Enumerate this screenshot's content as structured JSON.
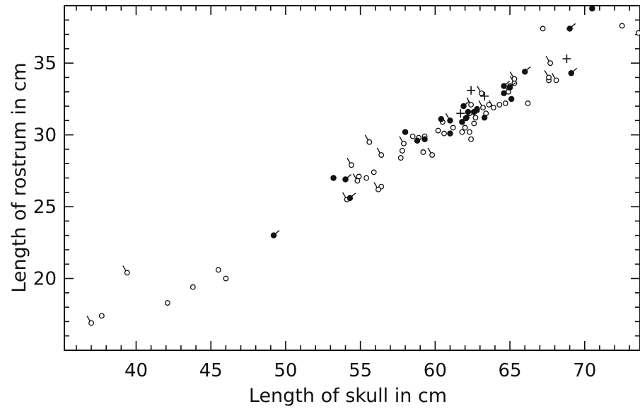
{
  "chart_data": {
    "type": "scatter",
    "xlabel": "Length of skull in cm",
    "ylabel": "Length of rostrum in cm",
    "xlim": [
      35.2,
      73.7
    ],
    "ylim": [
      15.0,
      39.0
    ],
    "x_ticks": [
      40,
      45,
      50,
      55,
      60,
      65,
      70
    ],
    "y_ticks": [
      20,
      25,
      30,
      35
    ],
    "grid": false,
    "colors": {
      "marks": "#111111",
      "axis": "#111111",
      "background": "#ffffff"
    },
    "series": [
      {
        "marker": "open-circle",
        "points": [
          [
            37.7,
            17.4
          ],
          [
            42.1,
            18.3
          ],
          [
            43.8,
            19.4
          ],
          [
            45.5,
            20.6
          ],
          [
            46.0,
            20.0
          ],
          [
            54.9,
            27.1
          ],
          [
            55.4,
            27.0
          ],
          [
            55.9,
            27.4
          ],
          [
            56.4,
            26.4
          ],
          [
            57.7,
            28.4
          ],
          [
            57.8,
            28.9
          ],
          [
            59.2,
            28.8
          ],
          [
            58.5,
            29.9
          ],
          [
            58.9,
            29.8
          ],
          [
            59.3,
            29.9
          ],
          [
            60.2,
            30.3
          ],
          [
            60.6,
            30.1
          ],
          [
            60.5,
            30.9
          ],
          [
            61.2,
            30.5
          ],
          [
            61.8,
            30.2
          ],
          [
            62.0,
            30.5
          ],
          [
            62.3,
            30.2
          ],
          [
            62.4,
            29.7
          ],
          [
            62.6,
            30.8
          ],
          [
            62.3,
            31.5
          ],
          [
            62.8,
            31.7
          ],
          [
            63.4,
            31.5
          ],
          [
            63.6,
            32.1
          ],
          [
            64.3,
            32.1
          ],
          [
            64.7,
            32.2
          ],
          [
            65.0,
            33.4
          ],
          [
            66.2,
            32.2
          ],
          [
            67.2,
            37.4
          ],
          [
            67.6,
            33.8
          ],
          [
            72.5,
            37.6
          ],
          [
            73.6,
            37.1
          ]
        ]
      },
      {
        "marker": "open-circle-tailed",
        "points": [
          [
            37.0,
            16.9
          ],
          [
            39.4,
            20.4
          ],
          [
            54.4,
            27.9
          ],
          [
            54.8,
            26.8
          ],
          [
            54.1,
            25.5
          ],
          [
            55.6,
            29.5
          ],
          [
            56.2,
            26.2
          ],
          [
            56.4,
            28.6
          ],
          [
            57.9,
            29.4
          ],
          [
            59.8,
            28.6
          ],
          [
            61.0,
            31.0
          ],
          [
            62.4,
            32.1
          ],
          [
            62.7,
            31.2
          ],
          [
            63.2,
            31.9
          ],
          [
            63.1,
            32.9
          ],
          [
            63.9,
            31.9
          ],
          [
            64.9,
            33.0
          ],
          [
            65.3,
            33.6
          ],
          [
            65.3,
            33.9
          ],
          [
            67.6,
            34.0
          ],
          [
            67.7,
            35.0
          ],
          [
            68.1,
            33.8
          ]
        ]
      },
      {
        "marker": "filled-circle",
        "points": [
          [
            53.2,
            27.0
          ],
          [
            58.0,
            30.2
          ],
          [
            58.8,
            29.6
          ],
          [
            59.3,
            29.7
          ],
          [
            60.4,
            31.1
          ],
          [
            61.0,
            31.0
          ],
          [
            61.0,
            30.1
          ],
          [
            61.8,
            30.9
          ],
          [
            62.1,
            31.2
          ],
          [
            62.2,
            31.6
          ],
          [
            62.6,
            31.6
          ],
          [
            62.8,
            31.8
          ],
          [
            63.3,
            31.2
          ],
          [
            64.6,
            32.9
          ],
          [
            65.1,
            32.5
          ],
          [
            70.5,
            38.8
          ]
        ]
      },
      {
        "marker": "filled-circle-tailed",
        "points": [
          [
            49.2,
            23.0
          ],
          [
            54.0,
            26.9
          ],
          [
            54.3,
            25.6
          ],
          [
            61.9,
            32.0
          ],
          [
            64.6,
            33.4
          ],
          [
            65.0,
            33.3
          ],
          [
            66.0,
            34.4
          ],
          [
            69.0,
            37.4
          ],
          [
            69.1,
            34.3
          ]
        ]
      },
      {
        "marker": "plus",
        "points": [
          [
            62.4,
            33.1
          ],
          [
            63.3,
            32.7
          ],
          [
            68.8,
            35.3
          ],
          [
            61.7,
            31.5
          ],
          [
            61.9,
            31.0
          ]
        ]
      }
    ]
  }
}
